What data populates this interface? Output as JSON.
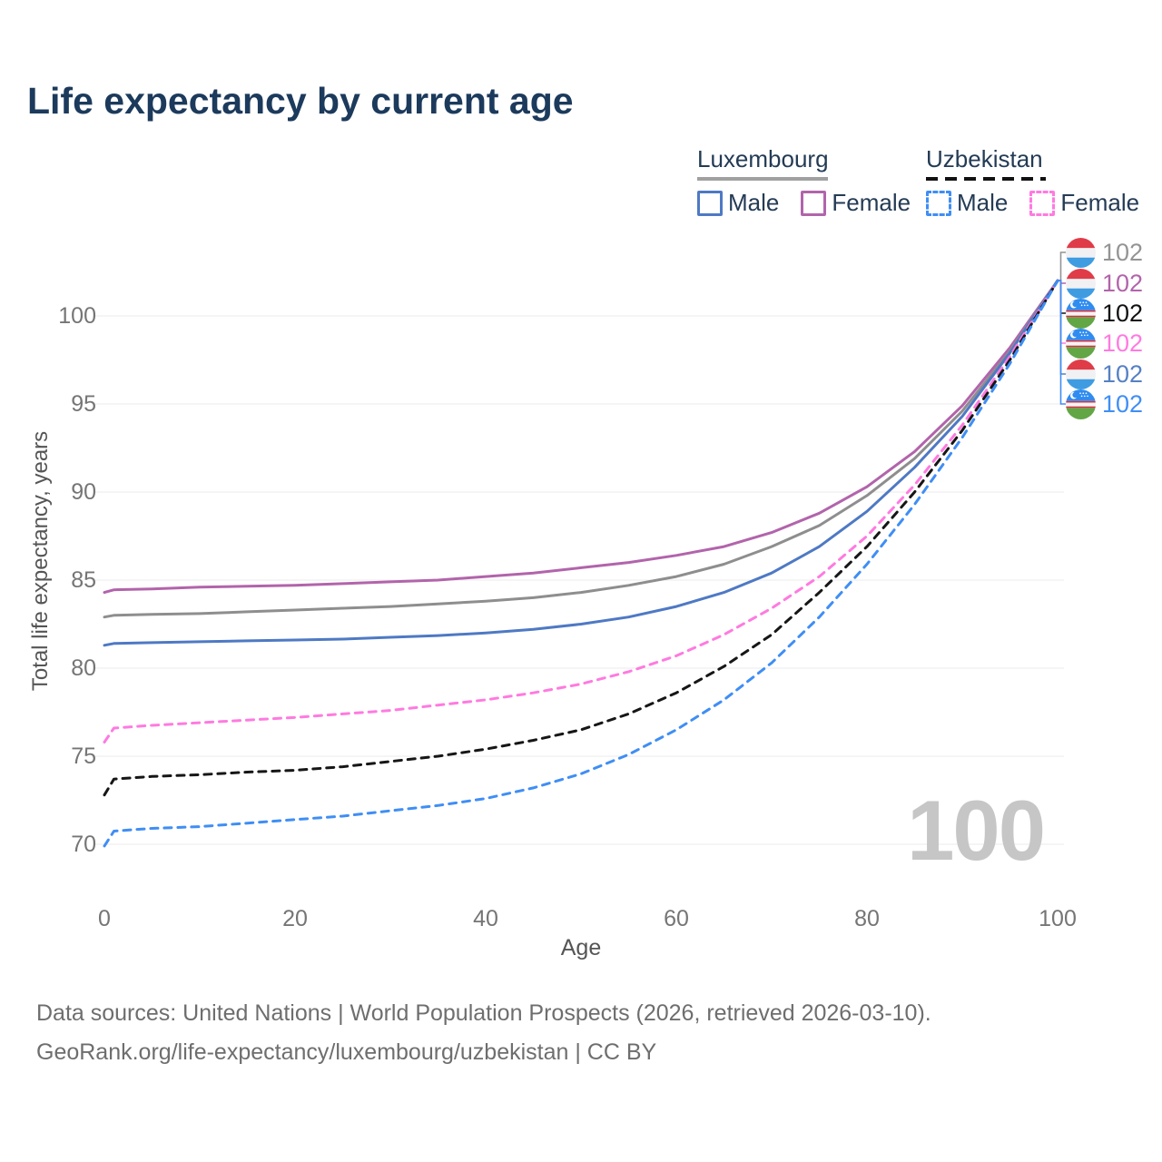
{
  "title": "Life expectancy by current age",
  "legend": {
    "groups": [
      {
        "name": "Luxembourg",
        "line_style": "solid",
        "underline_color": "#a0a0a0",
        "items": [
          {
            "label": "Male",
            "color": "#4e79c4",
            "dashed": false
          },
          {
            "label": "Female",
            "color": "#b264ab",
            "dashed": false
          }
        ]
      },
      {
        "name": "Uzbekistan",
        "line_style": "dashed",
        "underline_color": "#111111",
        "items": [
          {
            "label": "Male",
            "color": "#3f8ef5",
            "dashed": true
          },
          {
            "label": "Female",
            "color": "#ff7ae0",
            "dashed": true
          }
        ]
      }
    ]
  },
  "chart_data": {
    "type": "line",
    "title": "Life expectancy by current age",
    "xlabel": "Age",
    "ylabel": "Total life expectancy, years",
    "xticks": [
      0,
      20,
      40,
      60,
      80,
      100
    ],
    "yticks": [
      70,
      75,
      80,
      85,
      90,
      95,
      100
    ],
    "xlim": [
      0,
      100
    ],
    "ylim": [
      68.5,
      103.5
    ],
    "grid": "horizontal",
    "legend_position": "top-right",
    "x": [
      0,
      1,
      5,
      10,
      15,
      20,
      25,
      30,
      35,
      40,
      45,
      50,
      55,
      60,
      65,
      70,
      75,
      80,
      85,
      90,
      95,
      100
    ],
    "series": [
      {
        "name": "Luxembourg Female",
        "country": "Luxembourg",
        "sex": "Female",
        "color": "#b264ab",
        "dashed": false,
        "values": [
          84.3,
          84.45,
          84.5,
          84.6,
          84.65,
          84.7,
          84.8,
          84.9,
          85.0,
          85.2,
          85.4,
          85.7,
          86.0,
          86.4,
          86.9,
          87.7,
          88.8,
          90.3,
          92.3,
          94.9,
          98.2,
          102
        ]
      },
      {
        "name": "Luxembourg Both sexes",
        "country": "Luxembourg",
        "sex": "Both",
        "color": "#8e8e8e",
        "dashed": false,
        "values": [
          82.9,
          83.0,
          83.05,
          83.1,
          83.2,
          83.3,
          83.4,
          83.5,
          83.65,
          83.8,
          84.0,
          84.3,
          84.7,
          85.2,
          85.9,
          86.9,
          88.1,
          89.8,
          91.9,
          94.6,
          98.0,
          102
        ]
      },
      {
        "name": "Luxembourg Male",
        "country": "Luxembourg",
        "sex": "Male",
        "color": "#4e79c4",
        "dashed": false,
        "values": [
          81.3,
          81.4,
          81.45,
          81.5,
          81.55,
          81.6,
          81.65,
          81.75,
          81.85,
          82.0,
          82.2,
          82.5,
          82.9,
          83.5,
          84.3,
          85.4,
          86.9,
          88.9,
          91.4,
          94.3,
          97.9,
          102
        ]
      },
      {
        "name": "Uzbekistan Female",
        "country": "Uzbekistan",
        "sex": "Female",
        "color": "#ff7ae0",
        "dashed": true,
        "values": [
          75.8,
          76.6,
          76.75,
          76.9,
          77.05,
          77.2,
          77.4,
          77.6,
          77.9,
          78.2,
          78.6,
          79.1,
          79.8,
          80.7,
          81.9,
          83.4,
          85.2,
          87.5,
          90.4,
          93.8,
          97.7,
          102
        ]
      },
      {
        "name": "Uzbekistan Both sexes",
        "country": "Uzbekistan",
        "sex": "Both",
        "color": "#161616",
        "dashed": true,
        "values": [
          72.8,
          73.7,
          73.85,
          73.95,
          74.1,
          74.2,
          74.4,
          74.7,
          75.0,
          75.4,
          75.9,
          76.5,
          77.4,
          78.6,
          80.1,
          81.9,
          84.3,
          86.9,
          90.0,
          93.5,
          97.5,
          102
        ]
      },
      {
        "name": "Uzbekistan Male",
        "country": "Uzbekistan",
        "sex": "Male",
        "color": "#3f8ef5",
        "dashed": true,
        "values": [
          69.9,
          70.75,
          70.9,
          71.0,
          71.2,
          71.4,
          71.6,
          71.9,
          72.2,
          72.6,
          73.2,
          74.0,
          75.1,
          76.5,
          78.2,
          80.3,
          82.9,
          85.9,
          89.3,
          93.1,
          97.3,
          102
        ]
      }
    ]
  },
  "end_labels": [
    {
      "country": "Luxembourg",
      "value": "102",
      "color": "#949494"
    },
    {
      "country": "Luxembourg",
      "value": "102",
      "color": "#b264ab"
    },
    {
      "country": "Uzbekistan",
      "value": "102",
      "color": "#111111"
    },
    {
      "country": "Uzbekistan",
      "value": "102",
      "color": "#ff7ae0"
    },
    {
      "country": "Luxembourg",
      "value": "102",
      "color": "#5580c4"
    },
    {
      "country": "Uzbekistan",
      "value": "102",
      "color": "#3f8ef5"
    }
  ],
  "watermark": "100",
  "footer": {
    "line1": "Data sources: United Nations | World Population Prospects (2026, retrieved 2026-03-10).",
    "line2": "GeoRank.org/life-expectancy/luxembourg/uzbekistan | CC BY"
  },
  "colors": {
    "title": "#1c3a5c",
    "legend_text": "#243b55",
    "tick": "#757575",
    "axis_title": "#555555",
    "grid": "#ebebeb",
    "footer": "#6e6e6e",
    "watermark": "#c6c6c6"
  }
}
